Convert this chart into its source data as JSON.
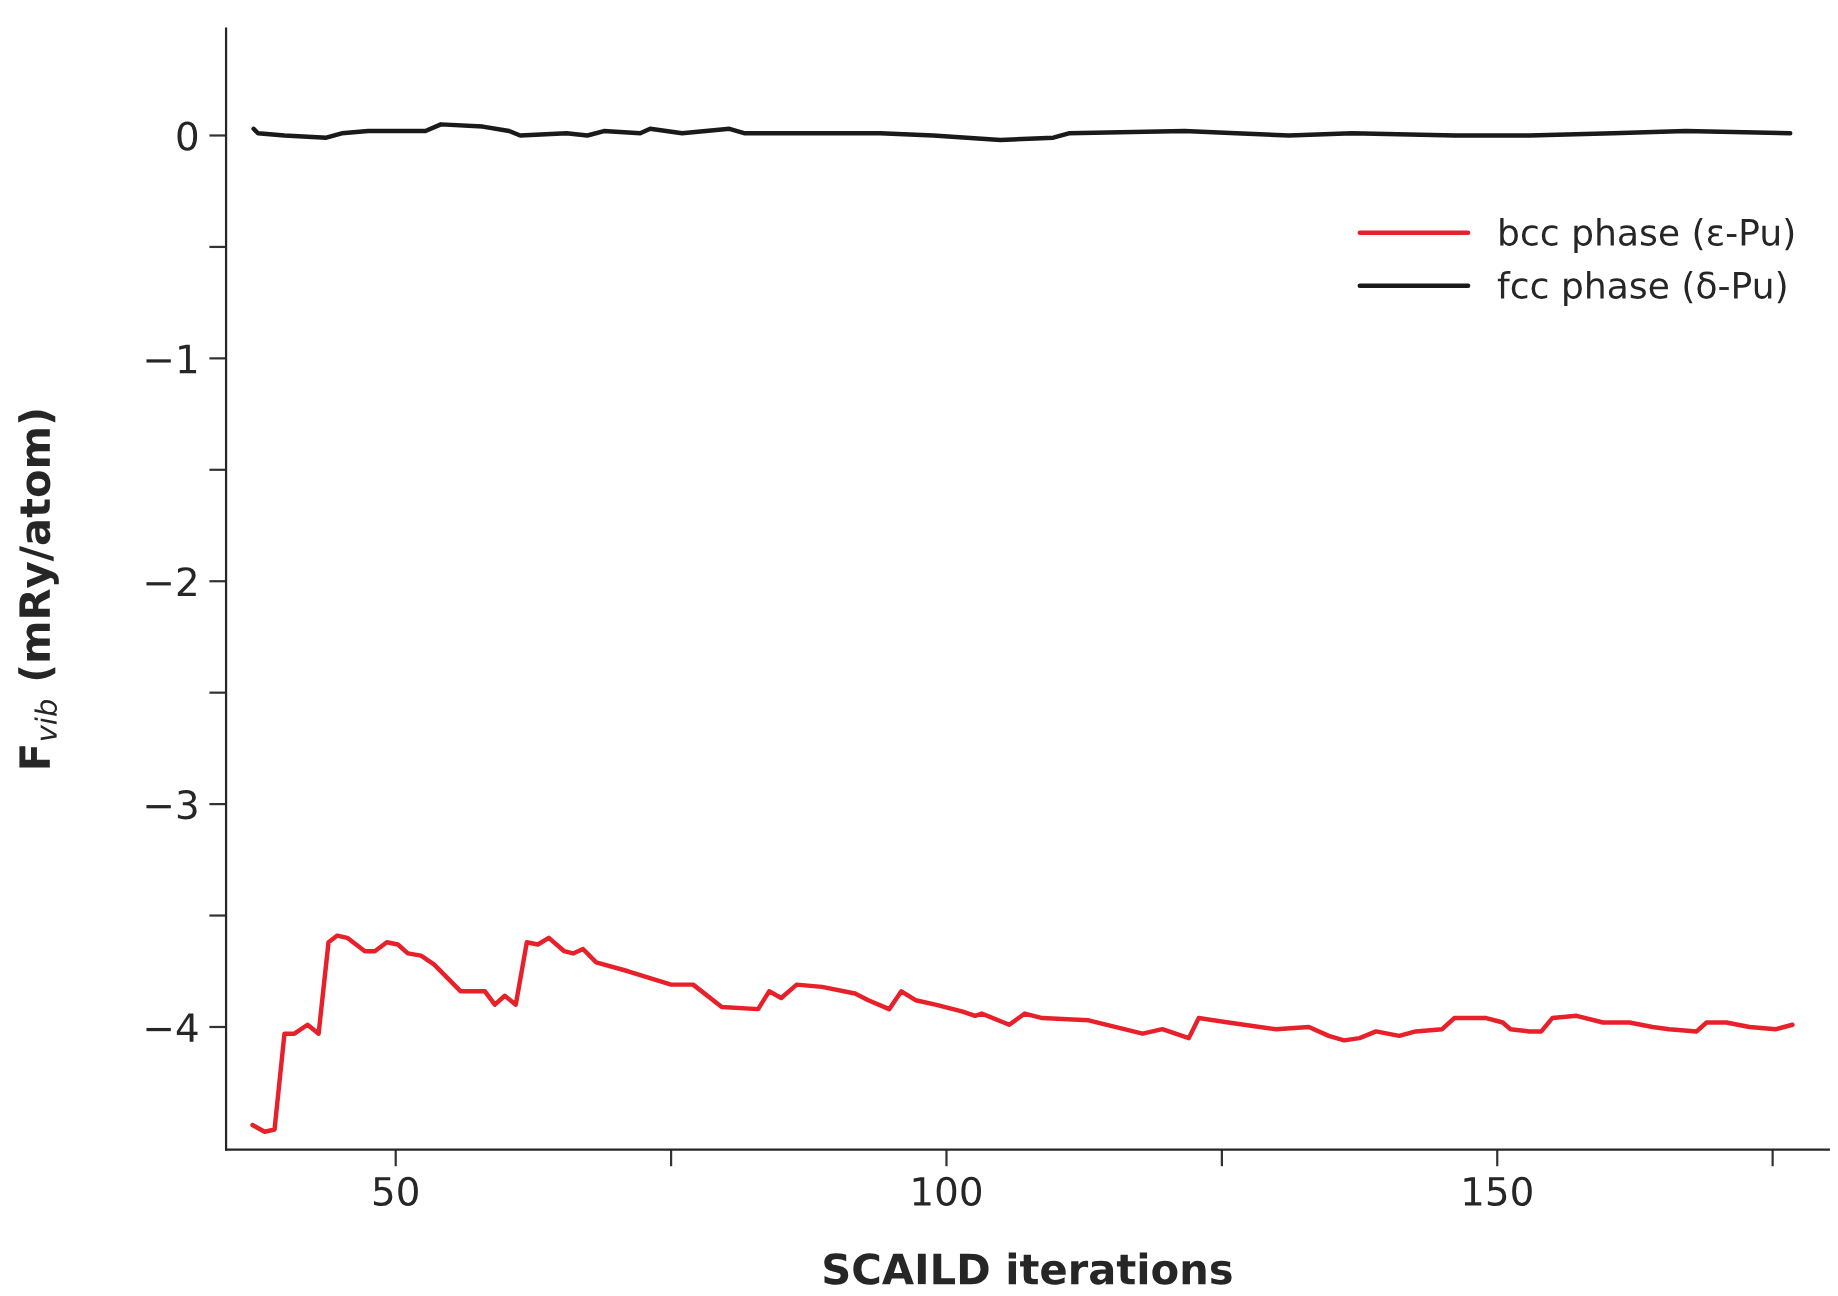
{
  "chart_data": {
    "type": "line",
    "xlabel": "SCAILD iterations",
    "ylabel": "F$_{vib}$ (mRy/atom)",
    "xlim": [
      34.6,
      180.1
    ],
    "ylim": [
      -4.55,
      0.48
    ],
    "xticks": [
      50,
      {
        "value": 75,
        "label": null
      },
      100,
      {
        "value": 125,
        "label": null
      },
      150,
      {
        "value": 175,
        "label": null
      }
    ],
    "yticks": [
      {
        "value": -4,
        "label": "−4"
      },
      {
        "value": -3.5,
        "label": null
      },
      {
        "value": -3,
        "label": "−3"
      },
      {
        "value": -2.5,
        "label": null
      },
      {
        "value": -2,
        "label": "−2"
      },
      {
        "value": -1.5,
        "label": null
      },
      {
        "value": -1,
        "label": "−1"
      },
      {
        "value": -0.5,
        "label": null
      },
      0
    ],
    "grid": false,
    "legend": "top right",
    "marker": "none",
    "line_style": "solid",
    "series": [
      {
        "name": "bcc phase (ε-Pu)",
        "color": "#e8202a",
        "x": [
          37.0,
          38.1,
          39.0,
          39.9,
          40.8,
          42.0,
          43.0,
          43.9,
          44.7,
          45.6,
          47.2,
          48.1,
          49.2,
          50.2,
          51.1,
          52.3,
          53.5,
          55.9,
          58.1,
          59.0,
          59.9,
          60.9,
          61.9,
          62.9,
          63.9,
          65.3,
          66.1,
          67.0,
          68.2,
          71.1,
          75.0,
          77.0,
          79.6,
          82.9,
          83.9,
          85.0,
          86.4,
          88.7,
          91.7,
          92.9,
          94.8,
          95.9,
          97.2,
          99.0,
          101.4,
          102.6,
          103.2,
          105.7,
          107.1,
          108.7,
          112.9,
          117.8,
          119.6,
          122.0,
          122.9,
          125.6,
          129.9,
          132.9,
          134.7,
          136.1,
          137.5,
          139.0,
          141.1,
          142.6,
          145.0,
          146.1,
          149.0,
          150.5,
          151.2,
          152.9,
          154.0,
          155.0,
          157.2,
          159.6,
          162.0,
          164.1,
          165.6,
          168.1,
          169.0,
          170.8,
          172.9,
          175.3,
          176.8
        ],
        "values": [
          -4.44,
          -4.47,
          -4.46,
          -4.03,
          -4.03,
          -3.99,
          -4.03,
          -3.62,
          -3.59,
          -3.6,
          -3.66,
          -3.66,
          -3.62,
          -3.63,
          -3.67,
          -3.68,
          -3.72,
          -3.84,
          -3.84,
          -3.9,
          -3.86,
          -3.9,
          -3.62,
          -3.63,
          -3.6,
          -3.66,
          -3.67,
          -3.65,
          -3.71,
          -3.75,
          -3.81,
          -3.81,
          -3.91,
          -3.92,
          -3.84,
          -3.87,
          -3.81,
          -3.82,
          -3.85,
          -3.88,
          -3.92,
          -3.84,
          -3.88,
          -3.9,
          -3.93,
          -3.95,
          -3.94,
          -3.99,
          -3.94,
          -3.96,
          -3.97,
          -4.03,
          -4.01,
          -4.05,
          -3.96,
          -3.98,
          -4.01,
          -4.0,
          -4.04,
          -4.06,
          -4.05,
          -4.02,
          -4.04,
          -4.02,
          -4.01,
          -3.96,
          -3.96,
          -3.98,
          -4.01,
          -4.02,
          -4.02,
          -3.96,
          -3.95,
          -3.98,
          -3.98,
          -4.0,
          -4.01,
          -4.02,
          -3.98,
          -3.98,
          -4.0,
          -4.01,
          -3.99
        ]
      },
      {
        "name": "fcc phase (δ-Pu)",
        "color": "#1a1a1a",
        "x": [
          37.1,
          37.5,
          39.9,
          43.7,
          45.1,
          47.5,
          52.7,
          54.1,
          57.9,
          60.3,
          61.3,
          65.5,
          67.4,
          68.9,
          72.2,
          73.1,
          76.0,
          80.3,
          81.7,
          94.0,
          98.8,
          104.9,
          109.7,
          111.1,
          121.6,
          126.3,
          131.1,
          136.8,
          146.2,
          152.9,
          160.5,
          167.1,
          176.6
        ],
        "values": [
          0.03,
          0.01,
          0.0,
          -0.01,
          0.01,
          0.02,
          0.02,
          0.05,
          0.04,
          0.02,
          0.0,
          0.01,
          0.0,
          0.02,
          0.01,
          0.03,
          0.01,
          0.03,
          0.01,
          0.01,
          0.0,
          -0.02,
          -0.01,
          0.01,
          0.02,
          0.01,
          0.0,
          0.01,
          0.0,
          0.0,
          0.01,
          0.02,
          0.01
        ]
      }
    ]
  }
}
